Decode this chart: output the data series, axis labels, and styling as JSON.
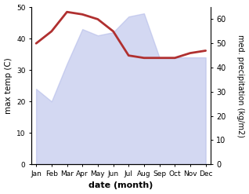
{
  "months": [
    "Jan",
    "Feb",
    "Mar",
    "Apr",
    "May",
    "Jun",
    "Jul",
    "Aug",
    "Sep",
    "Oct",
    "Nov",
    "Dec"
  ],
  "temp_max": [
    24,
    20,
    32,
    43,
    41,
    42,
    47,
    48,
    34,
    34,
    34,
    34
  ],
  "precipitation": [
    50,
    55,
    63,
    62,
    60,
    55,
    45,
    44,
    44,
    44,
    46,
    47
  ],
  "temp_ylim": [
    0,
    50
  ],
  "precip_ylim": [
    0,
    65
  ],
  "precip_yticks": [
    0,
    10,
    20,
    30,
    40,
    50,
    60
  ],
  "temp_yticks": [
    0,
    10,
    20,
    30,
    40,
    50
  ],
  "line_color": "#b03030",
  "fill_color": "#b0b8e8",
  "fill_alpha": 0.55,
  "xlabel": "date (month)",
  "ylabel_left": "max temp (C)",
  "ylabel_right": "med. precipitation (kg/m2)",
  "bg_color": "#ffffff",
  "line_linewidth": 2.0
}
